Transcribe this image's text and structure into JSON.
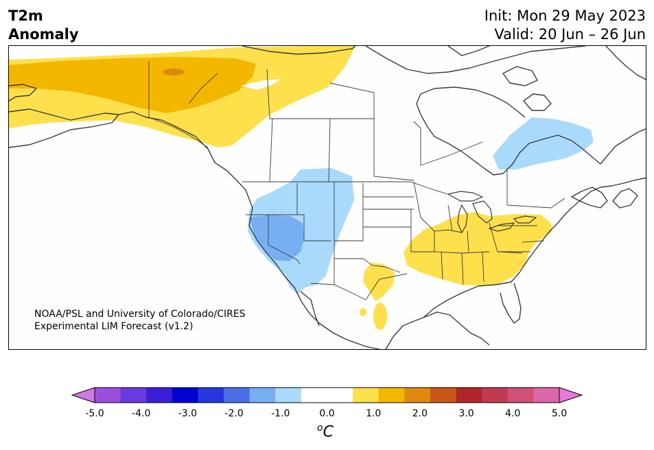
{
  "title": {
    "line1": "T2m",
    "line2": "Anomaly"
  },
  "dates": {
    "init": "Init: Mon 29 May 2023",
    "valid": "Valid: 20 Jun – 26 Jun"
  },
  "credit": {
    "line1": "NOAA/PSL and University of Colorado/CIRES",
    "line2": "Experimental LIM Forecast (v1.2)"
  },
  "colorbar": {
    "colors": [
      "#d07ae8",
      "#9b4fdc",
      "#6a3adf",
      "#3b1fd6",
      "#0202d0",
      "#2437dc",
      "#4a6fe6",
      "#76b0f3",
      "#aadafb",
      "#ffffff",
      "#ffffff",
      "#fde04c",
      "#f3b700",
      "#de8a10",
      "#c95818",
      "#b02626",
      "#c03a50",
      "#d05078",
      "#db66a8",
      "#e67adb"
    ],
    "ticks": [
      "-5.0",
      "-4.0",
      "-3.0",
      "-2.0",
      "-1.0",
      "0.0",
      "1.0",
      "2.0",
      "3.0",
      "4.0",
      "5.0"
    ],
    "unit": "C",
    "unit_super": "o"
  },
  "anomaly_colors": {
    "warm_light": "#fde04c",
    "warm": "#f3b700",
    "warm_dark": "#de8a10",
    "cool_light": "#aadafb",
    "cool": "#76b0f3"
  }
}
